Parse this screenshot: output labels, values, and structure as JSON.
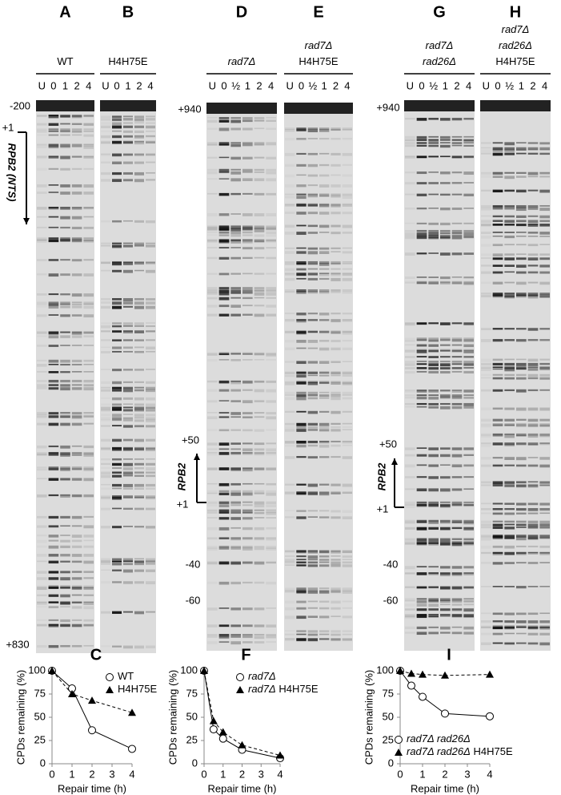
{
  "gels": [
    {
      "letter": "A",
      "header": [
        "WT"
      ],
      "lanes": [
        "U",
        "0",
        "1",
        "2",
        "4"
      ]
    },
    {
      "letter": "B",
      "header": [
        "H4H75E"
      ],
      "lanes": [
        "U",
        "0",
        "1",
        "2",
        "4"
      ]
    },
    {
      "letter": "D",
      "header": [
        "rad7Δ"
      ],
      "lanes": [
        "U",
        "0",
        "½",
        "1",
        "2",
        "4"
      ]
    },
    {
      "letter": "E",
      "header": [
        "rad7Δ",
        "H4H75E"
      ],
      "lanes": [
        "U",
        "0",
        "½",
        "1",
        "2",
        "4"
      ]
    },
    {
      "letter": "G",
      "header": [
        "rad7Δ",
        "rad26Δ"
      ],
      "lanes": [
        "U",
        "0",
        "½",
        "1",
        "2",
        "4"
      ]
    },
    {
      "letter": "H",
      "header": [
        "rad7Δ",
        "rad26Δ",
        "H4H75E"
      ],
      "lanes": [
        "U",
        "0",
        "½",
        "1",
        "2",
        "4"
      ]
    }
  ],
  "markers": [
    {
      "labels": [
        "-200",
        "+1",
        "+830"
      ],
      "gene": "RPB2 (NTS)"
    },
    {
      "labels": [
        "+940",
        "+50",
        "+1",
        "-40",
        "-60"
      ],
      "gene": "RPB2"
    },
    {
      "labels": [
        "+940",
        "+50",
        "+1",
        "-40",
        "-60"
      ],
      "gene": "RPB2"
    }
  ],
  "chart_data": [
    {
      "type": "line",
      "title": "C",
      "x_label": "Repair time (h)",
      "y_label": "CPDs remaining (%)",
      "x": [
        0,
        1,
        2,
        4
      ],
      "xlim": [
        0,
        4
      ],
      "xticks": [
        0,
        1,
        2,
        3,
        4
      ],
      "ylim": [
        0,
        100
      ],
      "yticks": [
        0,
        25,
        50,
        75,
        100
      ],
      "legend": "upper right",
      "series": [
        {
          "name": "WT",
          "color": "#000000",
          "marker": "circle",
          "style": "solid",
          "values": [
            100,
            81,
            36,
            16
          ]
        },
        {
          "name": "H4H75E",
          "color": "#000000",
          "marker": "triangle",
          "style": "dashed",
          "values": [
            100,
            75,
            68,
            55
          ]
        }
      ]
    },
    {
      "type": "line",
      "title": "F",
      "x_label": "Repair time (h)",
      "y_label": "CPDs remaining (%)",
      "x": [
        0,
        0.5,
        1,
        2,
        4
      ],
      "xlim": [
        0,
        4
      ],
      "xticks": [
        0,
        1,
        2,
        3,
        4
      ],
      "ylim": [
        0,
        100
      ],
      "yticks": [
        0,
        25,
        50,
        75,
        100
      ],
      "legend": "upper right",
      "series": [
        {
          "name": "rad7Δ",
          "color": "#000000",
          "marker": "circle",
          "style": "solid",
          "values": [
            100,
            37,
            27,
            15,
            6
          ]
        },
        {
          "name": "rad7Δ H4H75E",
          "color": "#000000",
          "marker": "triangle",
          "style": "dashed",
          "values": [
            100,
            46,
            34,
            20,
            9
          ]
        }
      ]
    },
    {
      "type": "line",
      "title": "I",
      "x_label": "Repair time (h)",
      "y_label": "CPDs remaining (%)",
      "x": [
        0,
        0.5,
        1,
        2,
        4
      ],
      "xlim": [
        0,
        4
      ],
      "xticks": [
        0,
        1,
        2,
        3,
        4
      ],
      "ylim": [
        0,
        100
      ],
      "yticks": [
        0,
        25,
        50,
        75,
        100
      ],
      "legend": "lower left",
      "series": [
        {
          "name": "rad7Δ rad26Δ",
          "color": "#000000",
          "marker": "circle",
          "style": "solid",
          "values": [
            100,
            84,
            72,
            54,
            51
          ]
        },
        {
          "name": "rad7Δ rad26Δ H4H75E",
          "color": "#000000",
          "marker": "triangle",
          "style": "dashed",
          "values": [
            100,
            97,
            96,
            95,
            96
          ]
        }
      ]
    }
  ]
}
